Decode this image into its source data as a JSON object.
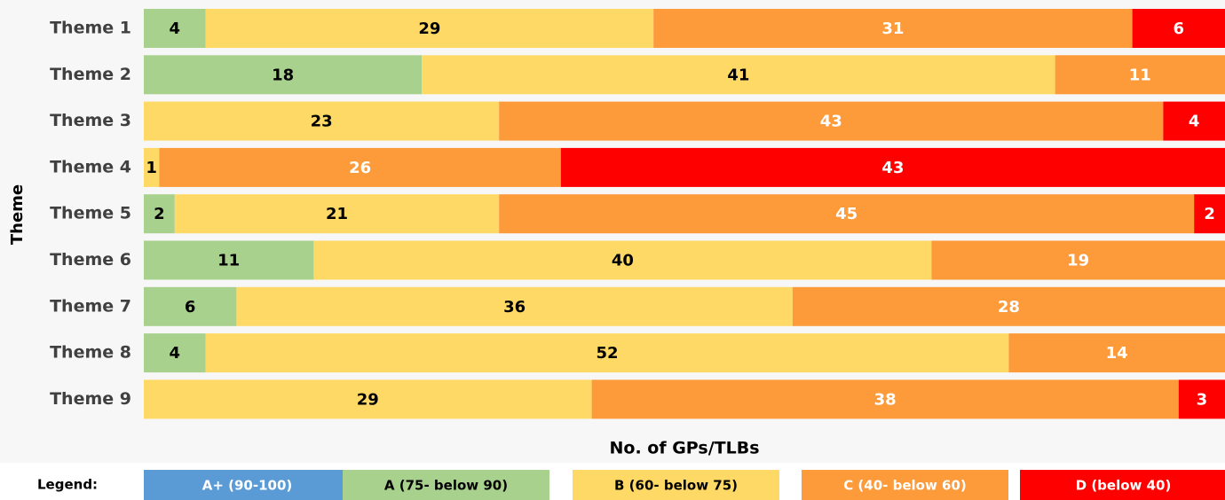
{
  "chart_data": {
    "type": "stacked-bar-horizontal",
    "x_label": "No. of GPs/TLBs",
    "y_label": "Theme",
    "legend_title": "Legend:",
    "categories": [
      "Theme 1",
      "Theme 2",
      "Theme 3",
      "Theme 4",
      "Theme 5",
      "Theme 6",
      "Theme 7",
      "Theme 8",
      "Theme 9"
    ],
    "xlim": [
      0,
      70
    ],
    "series": [
      {
        "name": "A+ (90-100)",
        "color": "#5b9bd5",
        "label_color": "#ffffff",
        "values": [
          0,
          0,
          0,
          0,
          0,
          0,
          0,
          0,
          0
        ]
      },
      {
        "name": "A (75- below 90)",
        "color": "#a9d18e",
        "label_color": "#000000",
        "values": [
          4,
          18,
          0,
          0,
          2,
          11,
          6,
          4,
          0
        ]
      },
      {
        "name": "B (60- below 75)",
        "color": "#ffd966",
        "label_color": "#000000",
        "values": [
          29,
          41,
          23,
          1,
          21,
          40,
          36,
          52,
          29
        ]
      },
      {
        "name": "C (40- below 60)",
        "color": "#fd9a3a",
        "label_color": "#ffffff",
        "values": [
          31,
          11,
          43,
          26,
          45,
          19,
          28,
          14,
          38
        ]
      },
      {
        "name": "D (below 40)",
        "color": "#ff0000",
        "label_color": "#ffffff",
        "values": [
          6,
          0,
          4,
          43,
          2,
          0,
          0,
          0,
          3
        ]
      }
    ]
  }
}
